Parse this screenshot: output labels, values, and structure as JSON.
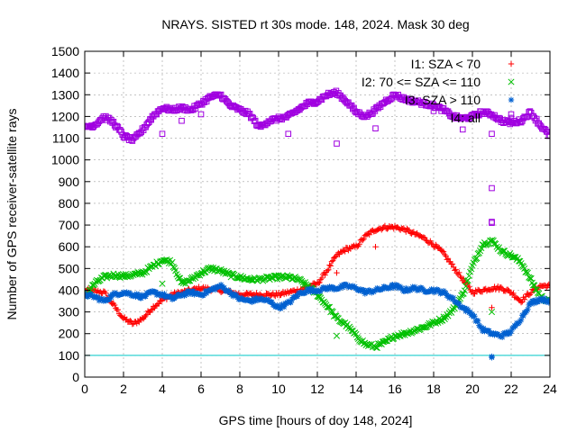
{
  "chart_data": {
    "type": "scatter",
    "title": "NRAYS. SISTED rt 30s mode. 148, 2024. Mask 30 deg",
    "xlabel": "GPS time [hours of doy 148, 2024]",
    "ylabel": "Number of GPS receiver-satellite rays",
    "xlim": [
      0,
      24
    ],
    "ylim": [
      0,
      1500
    ],
    "xticks": [
      0,
      2,
      4,
      6,
      8,
      10,
      12,
      14,
      16,
      18,
      20,
      22,
      24
    ],
    "yticks": [
      0,
      100,
      200,
      300,
      400,
      500,
      600,
      700,
      800,
      900,
      1000,
      1100,
      1200,
      1300,
      1400,
      1500
    ],
    "grid": true,
    "legend_position": "top-right",
    "series": [
      {
        "name": "I1: SZA < 70",
        "color": "#ff0000",
        "marker": "plus",
        "x": [
          0,
          1,
          1.5,
          2,
          2.5,
          3,
          3.5,
          4,
          4.5,
          5,
          5.5,
          6,
          7,
          8,
          9,
          10,
          11,
          12,
          12.5,
          13,
          13.5,
          14,
          14.5,
          15,
          15.5,
          16,
          16.5,
          17,
          17.5,
          18,
          18.5,
          19,
          19.5,
          20,
          20.5,
          21,
          21.5,
          22,
          22.5,
          23,
          23.5,
          24
        ],
        "y": [
          400,
          390,
          330,
          270,
          245,
          270,
          320,
          355,
          380,
          390,
          400,
          410,
          400,
          380,
          380,
          380,
          400,
          430,
          490,
          560,
          590,
          600,
          650,
          680,
          690,
          690,
          680,
          660,
          640,
          610,
          570,
          510,
          450,
          390,
          400,
          410,
          410,
          390,
          350,
          390,
          420,
          420
        ],
        "outliers": {
          "x": [
            13,
            15,
            21
          ],
          "y": [
            480,
            600,
            320
          ]
        }
      },
      {
        "name": "I2: 70 <= SZA <= 110",
        "color": "#00c000",
        "marker": "cross",
        "x": [
          0,
          0.5,
          1,
          1.5,
          2,
          2.5,
          3,
          3.5,
          4,
          4.5,
          5,
          5.5,
          6,
          6.5,
          7,
          7.5,
          8,
          8.5,
          9,
          9.5,
          10,
          10.5,
          11,
          11.5,
          12,
          12.5,
          13,
          13.5,
          14,
          14.5,
          15,
          15.5,
          16,
          16.5,
          17,
          17.5,
          18,
          18.5,
          19,
          19.5,
          20,
          20.5,
          21,
          21.5,
          22,
          22.5,
          23,
          23.5,
          24
        ],
        "y": [
          370,
          430,
          460,
          470,
          465,
          470,
          480,
          510,
          540,
          530,
          430,
          450,
          480,
          500,
          490,
          470,
          460,
          450,
          450,
          455,
          460,
          460,
          450,
          420,
          380,
          330,
          270,
          240,
          190,
          150,
          140,
          160,
          190,
          200,
          215,
          230,
          250,
          270,
          310,
          380,
          510,
          610,
          630,
          580,
          560,
          530,
          450,
          370,
          350
        ],
        "outliers": {
          "x": [
            4,
            13,
            21
          ],
          "y": [
            430,
            190,
            300
          ]
        }
      },
      {
        "name": "I3: SZA > 110",
        "color": "#0060d0",
        "marker": "star",
        "x": [
          0,
          0.5,
          1,
          1.5,
          2,
          2.5,
          3,
          3.5,
          4,
          4.5,
          5,
          5.5,
          6,
          6.5,
          7,
          7.5,
          8,
          8.5,
          9,
          9.5,
          10,
          10.5,
          11,
          11.5,
          12,
          12.5,
          13,
          13.5,
          14,
          14.5,
          15,
          15.5,
          16,
          16.5,
          17,
          17.5,
          18,
          18.5,
          19,
          19.5,
          20,
          20.5,
          21,
          21.5,
          22,
          22.5,
          23,
          23.5,
          24
        ],
        "y": [
          380,
          370,
          350,
          380,
          390,
          380,
          370,
          390,
          380,
          360,
          380,
          390,
          380,
          400,
          420,
          390,
          360,
          350,
          360,
          350,
          320,
          340,
          380,
          400,
          400,
          410,
          410,
          420,
          410,
          390,
          400,
          410,
          420,
          400,
          410,
          400,
          400,
          390,
          360,
          320,
          290,
          220,
          200,
          190,
          210,
          270,
          340,
          360,
          350
        ],
        "outliers": {
          "x": [
            21,
            21
          ],
          "y": [
            95,
            90
          ]
        }
      },
      {
        "name": "I4: all",
        "color": "#a000e0",
        "marker": "square",
        "x": [
          0,
          0.5,
          1,
          1.5,
          2,
          2.5,
          3,
          3.5,
          4,
          4.5,
          5,
          5.5,
          6,
          6.5,
          7,
          7.5,
          8,
          8.5,
          9,
          9.5,
          10,
          10.5,
          11,
          11.5,
          12,
          12.5,
          13,
          13.5,
          14,
          14.5,
          15,
          15.5,
          16,
          16.5,
          17,
          17.5,
          18,
          18.5,
          19,
          19.5,
          20,
          20.5,
          21,
          21.5,
          22,
          22.5,
          23,
          23.5,
          24
        ],
        "y": [
          1150,
          1160,
          1200,
          1170,
          1110,
          1090,
          1140,
          1200,
          1240,
          1230,
          1240,
          1230,
          1260,
          1290,
          1300,
          1250,
          1230,
          1210,
          1150,
          1180,
          1190,
          1200,
          1230,
          1260,
          1270,
          1300,
          1310,
          1270,
          1220,
          1200,
          1230,
          1270,
          1300,
          1280,
          1270,
          1260,
          1250,
          1230,
          1200,
          1190,
          1200,
          1220,
          1210,
          1180,
          1170,
          1180,
          1220,
          1160,
          1110
        ],
        "outliers": {
          "x": [
            4,
            5,
            6,
            7.5,
            10.5,
            13,
            15,
            18,
            19.5,
            21,
            21,
            21,
            21,
            22
          ],
          "y": [
            1120,
            1180,
            1210,
            1250,
            1120,
            1075,
            1145,
            1225,
            1140,
            1120,
            870,
            715,
            710,
            1210
          ]
        }
      }
    ],
    "reference_line": {
      "y": 100,
      "color": "#00c8c8"
    }
  }
}
